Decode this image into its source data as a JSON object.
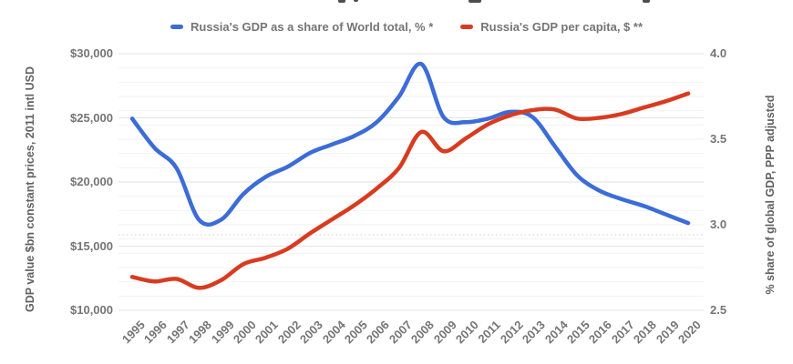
{
  "colors": {
    "series_share": "#3c6cd7",
    "series_percapita": "#d83b20",
    "tick_text": "#757575",
    "axis_title_text": "#616161",
    "major_gridline": "#e3e3e3",
    "minor_gridline": "#f2f2f2",
    "dotted_gridline": "#cfcfcf",
    "background": "#ffffff"
  },
  "legend": {
    "items": [
      {
        "label": "Russia's GDP as a share of World total, % *",
        "color": "#3c6cd7"
      },
      {
        "label": "Russia's GDP per capita, $ **",
        "color": "#d83b20"
      }
    ]
  },
  "left_axis": {
    "title": "GDP value $bn constant prices, 2011 intl USD",
    "ticks": [
      "$30,000",
      "$25,000",
      "$20,000",
      "$15,000",
      "$10,000"
    ],
    "tick_values": [
      30000,
      25000,
      20000,
      15000,
      10000
    ],
    "min": 10000,
    "max": 30000
  },
  "right_axis": {
    "title": "% share of global GDP, PPP adjusted",
    "ticks": [
      "4.0",
      "3.5",
      "3.0",
      "2.5"
    ],
    "tick_values": [
      4.0,
      3.5,
      3.0,
      2.5
    ],
    "min": 2.5,
    "max": 4.0
  },
  "chart_data": {
    "type": "line",
    "title": "",
    "xlabel": "",
    "ylabel_left": "GDP value $bn constant prices, 2011 intl USD",
    "ylabel_right": "% share of global GDP, PPP adjusted",
    "grid": "major and minor horizontal gridlines, no vertical gridlines",
    "legend_position": "top",
    "x": [
      1995,
      1996,
      1997,
      1998,
      1999,
      2000,
      2001,
      2002,
      2003,
      2004,
      2005,
      2006,
      2007,
      2008,
      2009,
      2010,
      2011,
      2012,
      2013,
      2014,
      2015,
      2016,
      2017,
      2018,
      2019,
      2020
    ],
    "series": [
      {
        "name": "Russia's GDP as a share of World total, % *",
        "axis": "right",
        "color": "#3c6cd7",
        "values": [
          3.62,
          3.45,
          3.33,
          3.03,
          3.03,
          3.18,
          3.28,
          3.34,
          3.42,
          3.47,
          3.52,
          3.6,
          3.75,
          3.94,
          3.63,
          3.6,
          3.62,
          3.66,
          3.63,
          3.46,
          3.29,
          3.2,
          3.15,
          3.11,
          3.06,
          3.01
        ]
      },
      {
        "name": "Russia's GDP per capita, $ **",
        "axis": "left",
        "color": "#d83b20",
        "values": [
          12600,
          12250,
          12450,
          11750,
          12350,
          13600,
          14100,
          14800,
          16000,
          17100,
          18200,
          19500,
          21100,
          23900,
          22400,
          23400,
          24500,
          25200,
          25600,
          25650,
          24950,
          25000,
          25300,
          25800,
          26300,
          26900
        ]
      }
    ],
    "left_ylim": [
      10000,
      30000
    ],
    "right_ylim": [
      2.5,
      4.0
    ]
  }
}
